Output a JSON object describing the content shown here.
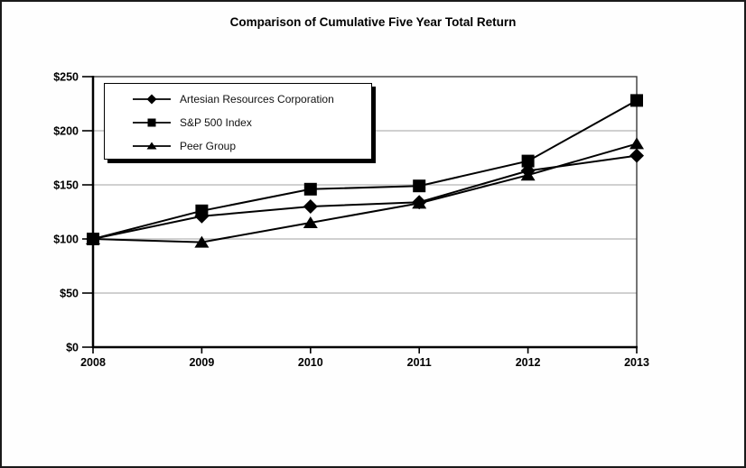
{
  "chart_data": {
    "type": "line",
    "title": "Comparison of Cumulative Five Year Total Return",
    "xlabel": "",
    "ylabel": "",
    "x": [
      "2008",
      "2009",
      "2010",
      "2011",
      "2012",
      "2013"
    ],
    "ylim": [
      0,
      250
    ],
    "y_ticks": [
      0,
      50,
      100,
      150,
      200,
      250
    ],
    "y_tick_labels": [
      "$0",
      "$50",
      "$100",
      "$150",
      "$200",
      "$250"
    ],
    "grid": "horizontal gridlines at each $50",
    "legend_position": "upper-left inside plot, boxed with black drop shadow",
    "series": [
      {
        "name": "Artesian Resources Corporation",
        "marker": "diamond",
        "color": "#000000",
        "values": [
          100,
          121,
          130,
          134,
          163,
          177
        ]
      },
      {
        "name": "S&P 500 Index",
        "marker": "square",
        "color": "#000000",
        "values": [
          100,
          126,
          146,
          149,
          172,
          228
        ]
      },
      {
        "name": "Peer Group",
        "marker": "triangle",
        "color": "#000000",
        "values": [
          100,
          97,
          115,
          133,
          159,
          188
        ]
      }
    ],
    "colors": {
      "line": "#000000",
      "marker": "#000000",
      "grid": "#b3b3b3",
      "frame": "#3a3a3a",
      "axis": "#000000",
      "plot_background": "#ffffff",
      "page_background": "#fefefe",
      "page_border": "#1a1a1a"
    }
  }
}
